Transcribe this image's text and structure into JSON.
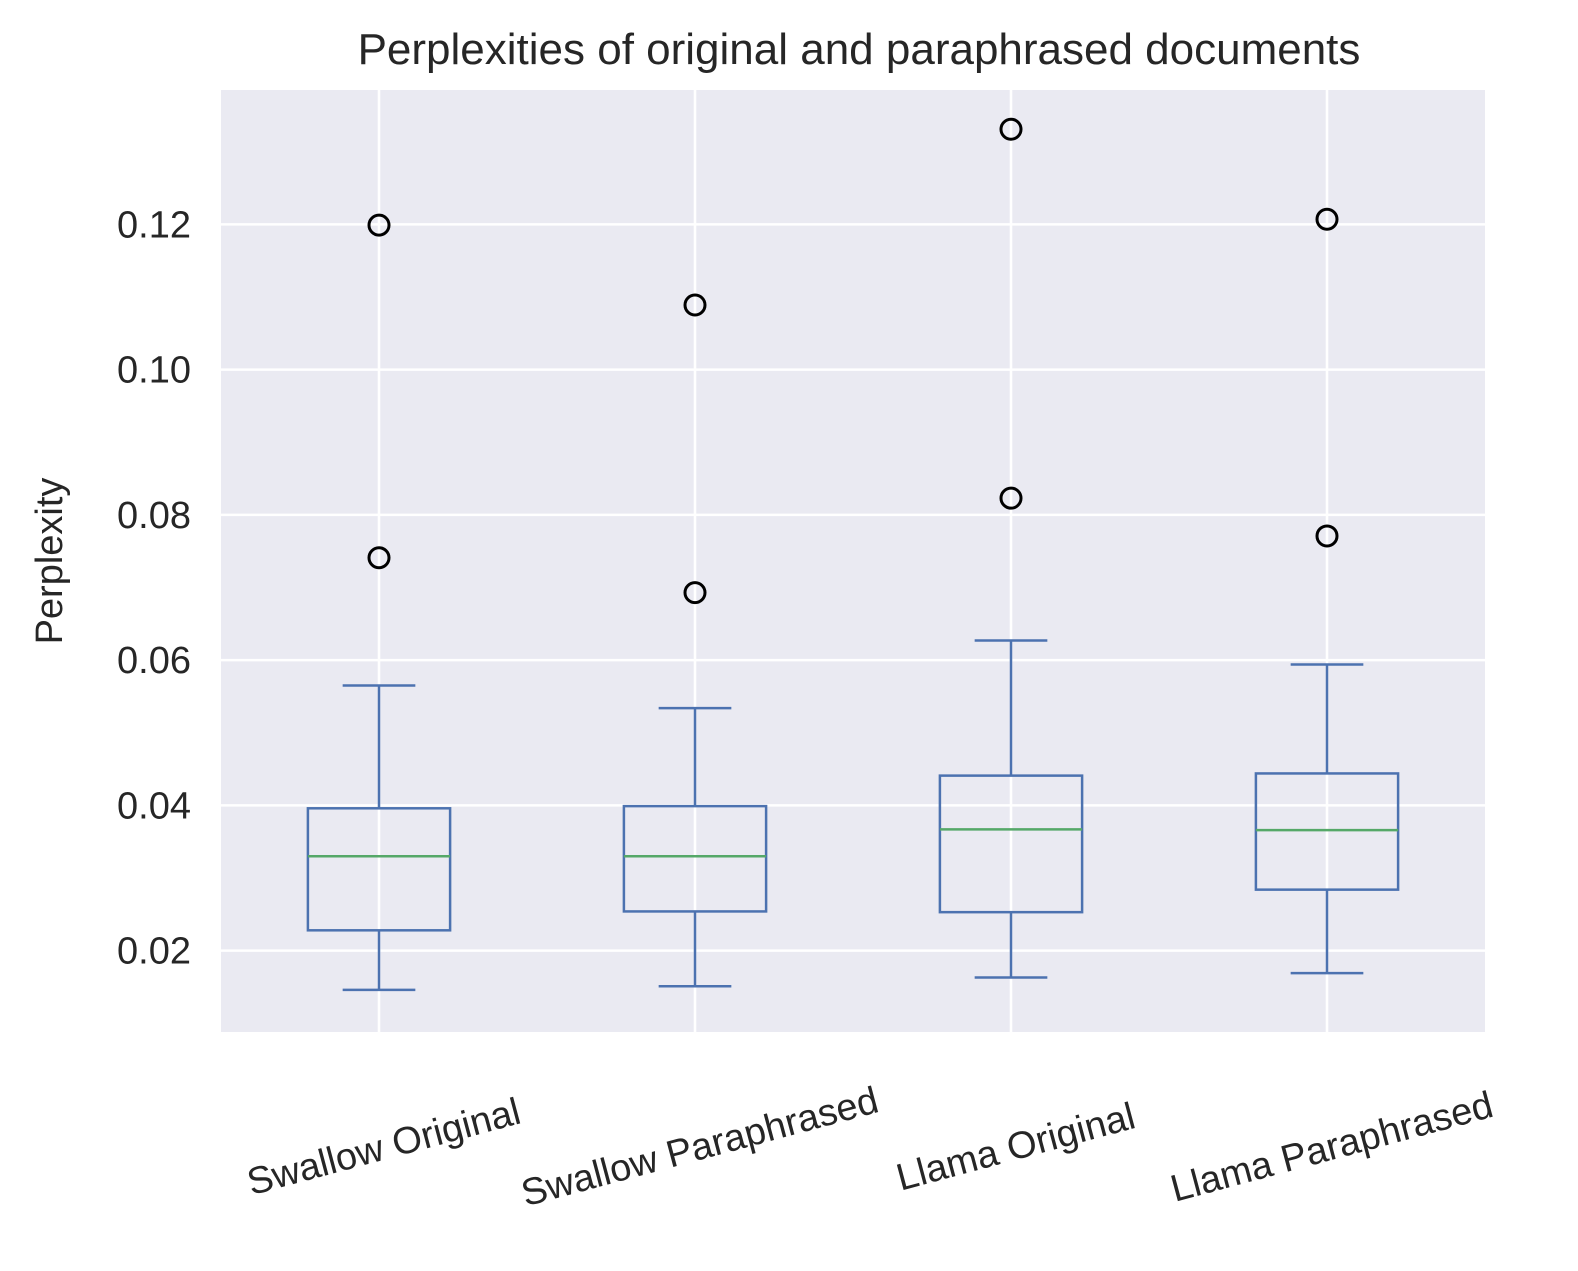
{
  "chart_data": {
    "type": "box",
    "title": "Perplexities of original and paraphrased documents",
    "xlabel": "",
    "ylabel": "Perplexity",
    "ylim": [
      0.0088,
      0.1385
    ],
    "yticks": [
      "0.02",
      "0.04",
      "0.06",
      "0.08",
      "0.10",
      "0.12"
    ],
    "ytick_values": [
      0.02,
      0.04,
      0.06,
      0.08,
      0.1,
      0.12
    ],
    "xtick_rotation_deg": -15,
    "grid": true,
    "categories": [
      "Swallow Original",
      "Swallow Paraphrased",
      "Llama Original",
      "Llama Paraphrased"
    ],
    "boxes": [
      {
        "category": "Swallow Original",
        "whisker_low": 0.0146,
        "q1": 0.0228,
        "median": 0.033,
        "q3": 0.0396,
        "whisker_high": 0.0565,
        "outliers": [
          0.0741,
          0.1199
        ]
      },
      {
        "category": "Swallow Paraphrased",
        "whisker_low": 0.0151,
        "q1": 0.0254,
        "median": 0.033,
        "q3": 0.0399,
        "whisker_high": 0.0534,
        "outliers": [
          0.0693,
          0.1089
        ]
      },
      {
        "category": "Llama Original",
        "whisker_low": 0.0163,
        "q1": 0.0253,
        "median": 0.0367,
        "q3": 0.0441,
        "whisker_high": 0.0627,
        "outliers": [
          0.0823,
          0.1331
        ]
      },
      {
        "category": "Llama Paraphrased",
        "whisker_low": 0.0169,
        "q1": 0.0284,
        "median": 0.0366,
        "q3": 0.0444,
        "whisker_high": 0.0594,
        "outliers": [
          0.0771,
          0.1207
        ]
      }
    ],
    "colors": {
      "background": "#eaeaf2",
      "grid": "#ffffff",
      "box": "#4c72b0",
      "median": "#55a868",
      "outlier_edge": "#000000"
    }
  }
}
